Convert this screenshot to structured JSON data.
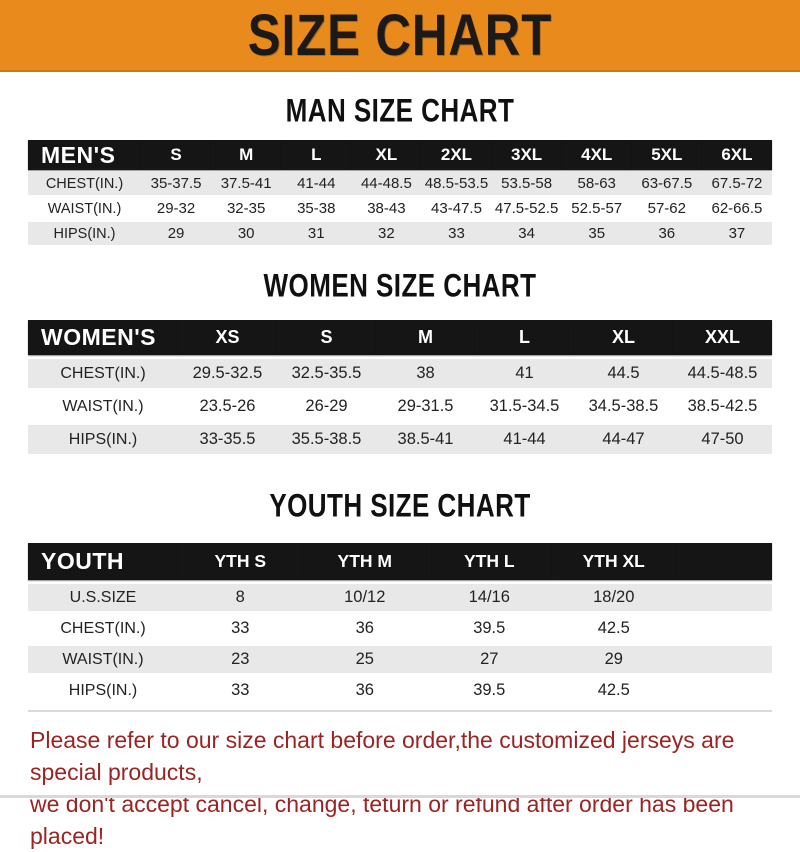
{
  "banner": {
    "title": "SIZE CHART"
  },
  "sections": [
    {
      "id": "men",
      "heading": "MAN SIZE CHART",
      "group_label": "MEN'S",
      "columns": [
        "S",
        "M",
        "L",
        "XL",
        "2XL",
        "3XL",
        "4XL",
        "5XL",
        "6XL"
      ],
      "rows": [
        {
          "label": "CHEST(IN.)",
          "values": [
            "35-37.5",
            "37.5-41",
            "41-44",
            "44-48.5",
            "48.5-53.5",
            "53.5-58",
            "58-63",
            "63-67.5",
            "67.5-72"
          ]
        },
        {
          "label": "WAIST(IN.)",
          "values": [
            "29-32",
            "32-35",
            "35-38",
            "38-43",
            "43-47.5",
            "47.5-52.5",
            "52.5-57",
            "57-62",
            "62-66.5"
          ]
        },
        {
          "label": "HIPS(IN.)",
          "values": [
            "29",
            "30",
            "31",
            "32",
            "33",
            "34",
            "35",
            "36",
            "37"
          ]
        }
      ]
    },
    {
      "id": "women",
      "heading": "WOMEN SIZE CHART",
      "group_label": "WOMEN'S",
      "columns": [
        "XS",
        "S",
        "M",
        "L",
        "XL",
        "XXL"
      ],
      "rows": [
        {
          "label": "CHEST(IN.)",
          "values": [
            "29.5-32.5",
            "32.5-35.5",
            "38",
            "41",
            "44.5",
            "44.5-48.5"
          ]
        },
        {
          "label": "WAIST(IN.)",
          "values": [
            "23.5-26",
            "26-29",
            "29-31.5",
            "31.5-34.5",
            "34.5-38.5",
            "38.5-42.5"
          ]
        },
        {
          "label": "HIPS(IN.)",
          "values": [
            "33-35.5",
            "35.5-38.5",
            "38.5-41",
            "41-44",
            "44-47",
            "47-50"
          ]
        }
      ]
    },
    {
      "id": "youth",
      "heading": "YOUTH SIZE CHART",
      "group_label": "YOUTH",
      "columns": [
        "YTH S",
        "YTH M",
        "YTH L",
        "YTH XL"
      ],
      "rows": [
        {
          "label": "U.S.SIZE",
          "values": [
            "8",
            "10/12",
            "14/16",
            "18/20"
          ]
        },
        {
          "label": "CHEST(IN.)",
          "values": [
            "33",
            "36",
            "39.5",
            "42.5"
          ]
        },
        {
          "label": "WAIST(IN.)",
          "values": [
            "23",
            "25",
            "27",
            "29"
          ]
        },
        {
          "label": "HIPS(IN.)",
          "values": [
            "33",
            "36",
            "39.5",
            "42.5"
          ]
        }
      ]
    }
  ],
  "footer": {
    "line1": "Please refer to our size chart before order,the customized jerseys are special products,",
    "line2": "we don't accept cancel, change, teturn or refund after order has been placed!"
  },
  "colors": {
    "banner_bg": "#E98A1D",
    "header_bar": "#151515",
    "row_alt": "#E8E8E8",
    "footer_text": "#9B2423"
  }
}
